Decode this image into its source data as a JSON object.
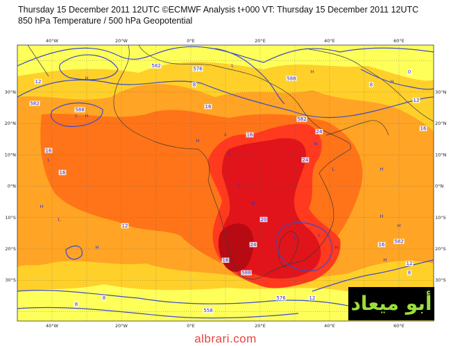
{
  "header": {
    "line1": "Thursday 15 December 2011 12UTC ©ECMWF Analysis t+000 VT: Thursday 15 December 2011 12UTC",
    "line2": "850 hPa Temperature / 500 hPa Geopotential"
  },
  "axes": {
    "lon_labels": [
      "40°W",
      "20°W",
      "0°E",
      "20°E",
      "40°E",
      "60°E"
    ],
    "lat_labels": [
      "30°N",
      "20°N",
      "10°N",
      "0°N",
      "10°S",
      "20°S",
      "30°S"
    ]
  },
  "contour_labels": [
    {
      "text": "582",
      "lon": -10,
      "lat": 38
    },
    {
      "text": "576",
      "lon": 2,
      "lat": 37
    },
    {
      "text": "588",
      "lon": 29,
      "lat": 34
    },
    {
      "text": "12",
      "lon": -44,
      "lat": 33
    },
    {
      "text": "8",
      "lon": 1,
      "lat": 32
    },
    {
      "text": "8",
      "lon": 52,
      "lat": 32
    },
    {
      "text": "0",
      "lon": 63,
      "lat": 36
    },
    {
      "text": "12",
      "lon": 65,
      "lat": 27
    },
    {
      "text": "582",
      "lon": -45,
      "lat": 26
    },
    {
      "text": "16",
      "lon": 5,
      "lat": 25
    },
    {
      "text": "588",
      "lon": -32,
      "lat": 24
    },
    {
      "text": "582",
      "lon": 32,
      "lat": 21
    },
    {
      "text": "16",
      "lon": 67,
      "lat": 18
    },
    {
      "text": "24",
      "lon": 37,
      "lat": 17
    },
    {
      "text": "16",
      "lon": 17,
      "lat": 16
    },
    {
      "text": "16",
      "lon": -41,
      "lat": 11
    },
    {
      "text": "24",
      "lon": 33,
      "lat": 8
    },
    {
      "text": "16",
      "lon": -37,
      "lat": 4
    },
    {
      "text": "20",
      "lon": 21,
      "lat": -11
    },
    {
      "text": "12",
      "lon": -19,
      "lat": -13
    },
    {
      "text": "24",
      "lon": 18,
      "lat": -19
    },
    {
      "text": "16",
      "lon": 10,
      "lat": -24
    },
    {
      "text": "16",
      "lon": 55,
      "lat": -19
    },
    {
      "text": "582",
      "lon": 60,
      "lat": -18
    },
    {
      "text": "588",
      "lon": 16,
      "lat": -28
    },
    {
      "text": "12",
      "lon": 63,
      "lat": -25
    },
    {
      "text": "8",
      "lon": 63,
      "lat": -28
    },
    {
      "text": "8",
      "lon": -33,
      "lat": -38
    },
    {
      "text": "8",
      "lon": -25,
      "lat": -36
    },
    {
      "text": "576",
      "lon": 26,
      "lat": -36
    },
    {
      "text": "12",
      "lon": 35,
      "lat": -36
    },
    {
      "text": "558",
      "lon": 5,
      "lat": -40
    }
  ],
  "pressure_marks": [
    {
      "text": "H",
      "lon": -30,
      "lat": 34
    },
    {
      "text": "H",
      "lon": 35,
      "lat": 36
    },
    {
      "text": "L",
      "lon": 12,
      "lat": 38
    },
    {
      "text": "H",
      "lon": 58,
      "lat": 33
    },
    {
      "text": "L",
      "lon": -33,
      "lat": 22
    },
    {
      "text": "H",
      "lon": -30,
      "lat": 22
    },
    {
      "text": "L",
      "lon": 10,
      "lat": 16
    },
    {
      "text": "H",
      "lon": 2,
      "lat": 14
    },
    {
      "text": "L",
      "lon": 11,
      "lat": 10
    },
    {
      "text": "L",
      "lon": -41,
      "lat": 8
    },
    {
      "text": "H",
      "lon": 36,
      "lat": 13
    },
    {
      "text": "L",
      "lon": 41,
      "lat": 5
    },
    {
      "text": "H",
      "lon": 55,
      "lat": 5
    },
    {
      "text": "L",
      "lon": 14,
      "lat": 0
    },
    {
      "text": "H",
      "lon": -43,
      "lat": -7
    },
    {
      "text": "L",
      "lon": -38,
      "lat": -11
    },
    {
      "text": "H",
      "lon": 18,
      "lat": -6
    },
    {
      "text": "H",
      "lon": 55,
      "lat": -10
    },
    {
      "text": "H",
      "lon": 60,
      "lat": -13
    },
    {
      "text": "H",
      "lon": -27,
      "lat": -20
    },
    {
      "text": "L",
      "lon": 30,
      "lat": -17
    },
    {
      "text": "L",
      "lon": 37,
      "lat": -16
    },
    {
      "text": "H",
      "lon": 42,
      "lat": -20
    },
    {
      "text": "H",
      "lon": 56,
      "lat": -24
    }
  ],
  "logo": {
    "text": "أبو ميعاد"
  },
  "footer": {
    "text": "albrari.com"
  },
  "colors": {
    "band_yellow": "#ffff5a",
    "band_gold": "#ffd02a",
    "band_orange": "#ffa424",
    "band_darkorange": "#ff7418",
    "band_red": "#ff3a1e",
    "band_crimson": "#e0141a",
    "band_darkred": "#b80a12",
    "contour": "#3a4acc",
    "coast": "#3a3a3a"
  }
}
